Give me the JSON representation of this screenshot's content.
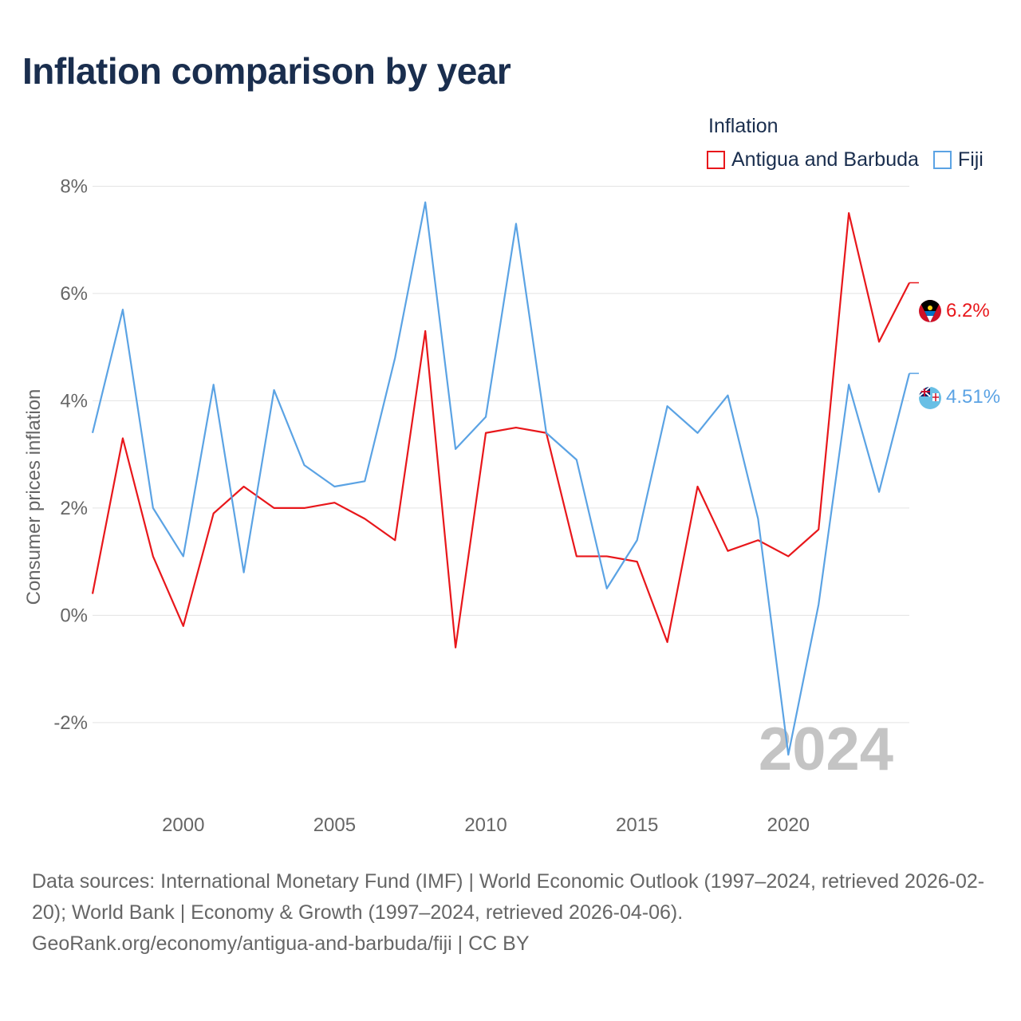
{
  "title": "Inflation comparison by year",
  "legend": {
    "title": "Inflation",
    "items": [
      {
        "label": "Antigua and Barbuda",
        "color": "#e8171b"
      },
      {
        "label": "Fiji",
        "color": "#5ba3e4"
      }
    ]
  },
  "chart_data": {
    "type": "line",
    "title": "Inflation comparison by year",
    "ylabel": "Consumer prices inflation",
    "xlabel": "",
    "x": [
      1997,
      1998,
      1999,
      2000,
      2001,
      2002,
      2003,
      2004,
      2005,
      2006,
      2007,
      2008,
      2009,
      2010,
      2011,
      2012,
      2013,
      2014,
      2015,
      2016,
      2017,
      2018,
      2019,
      2020,
      2021,
      2022,
      2023,
      2024
    ],
    "xlim": [
      1997,
      2024
    ],
    "ylim": [
      -3.4,
      8.2
    ],
    "yticks": [
      -2,
      0,
      2,
      4,
      6,
      8
    ],
    "ytick_labels": [
      "-2%",
      "0%",
      "2%",
      "4%",
      "6%",
      "8%"
    ],
    "xticks": [
      2000,
      2005,
      2010,
      2015,
      2020
    ],
    "xtick_labels": [
      "2000",
      "2005",
      "2010",
      "2015",
      "2020"
    ],
    "series": [
      {
        "name": "Antigua and Barbuda",
        "color": "#e8171b",
        "end_label": "6.2%",
        "values": [
          0.4,
          3.3,
          1.1,
          -0.2,
          1.9,
          2.4,
          2.0,
          2.0,
          2.1,
          1.8,
          1.4,
          5.3,
          -0.6,
          3.4,
          3.5,
          3.4,
          1.1,
          1.1,
          1.0,
          -0.5,
          2.4,
          1.2,
          1.4,
          1.1,
          1.6,
          7.5,
          5.1,
          6.2
        ]
      },
      {
        "name": "Fiji",
        "color": "#5ba3e4",
        "end_label": "4.51%",
        "values": [
          3.4,
          5.7,
          2.0,
          1.1,
          4.3,
          0.8,
          4.2,
          2.8,
          2.4,
          2.5,
          4.8,
          7.7,
          3.1,
          3.7,
          7.3,
          3.4,
          2.9,
          0.5,
          1.4,
          3.9,
          3.4,
          4.1,
          1.8,
          -2.6,
          0.2,
          4.3,
          2.3,
          4.51
        ]
      }
    ],
    "year_watermark": "2024"
  },
  "footer": {
    "line1": "Data sources: International Monetary Fund (IMF) | World Economic Outlook (1997–2024, retrieved 2026-02-20); World Bank | Economy & Growth (1997–2024, retrieved 2026-04-06).",
    "line2": "GeoRank.org/economy/antigua-and-barbuda/fiji | CC BY"
  }
}
